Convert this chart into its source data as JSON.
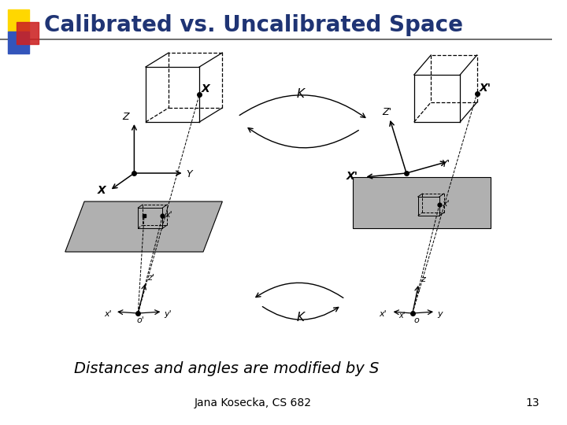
{
  "title": "Calibrated vs. Uncalibrated Space",
  "subtitle": "Distances and angles are modified by S",
  "footer": "Jana Kosecka, CS 682",
  "page_number": "13",
  "bg_color": "#ffffff",
  "title_color": "#1F3474",
  "body_text_color": "#000000",
  "gray_color": "#B0B0B0",
  "subtitle_fontsize": 14,
  "footer_fontsize": 10,
  "title_fontsize": 20
}
